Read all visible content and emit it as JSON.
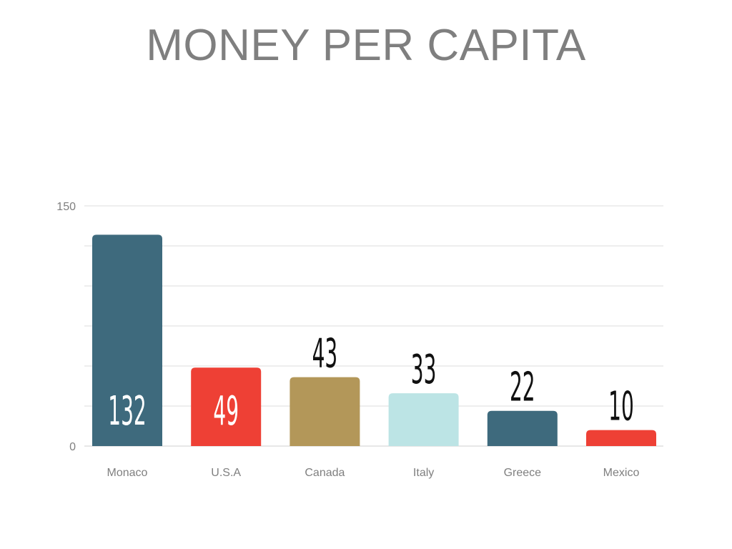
{
  "chart_data": {
    "type": "bar",
    "title": "MONEY PER CAPITA",
    "categories": [
      "Monaco",
      "U.S.A",
      "Canada",
      "Italy",
      "Greece",
      "Mexico"
    ],
    "values": [
      132,
      49,
      43,
      33,
      22,
      10
    ],
    "data_labels": [
      "132",
      "49",
      "43",
      "33",
      "22",
      "10"
    ],
    "bar_colors": [
      "#3e6a7d",
      "#ee4035",
      "#b39759",
      "#bce4e5",
      "#3e6a7d",
      "#ee4035"
    ],
    "data_label_colors": [
      "#ffffff",
      "#ffffff",
      "#111111",
      "#111111",
      "#111111",
      "#111111"
    ],
    "data_label_inside": [
      true,
      true,
      false,
      false,
      false,
      false
    ],
    "ylim": [
      0,
      150
    ],
    "y_ticks_labeled": [
      "0",
      "150"
    ],
    "y_tick_values": [
      0,
      150
    ],
    "gridline_step": 25,
    "grid": true,
    "xlabel": "",
    "ylabel": ""
  }
}
